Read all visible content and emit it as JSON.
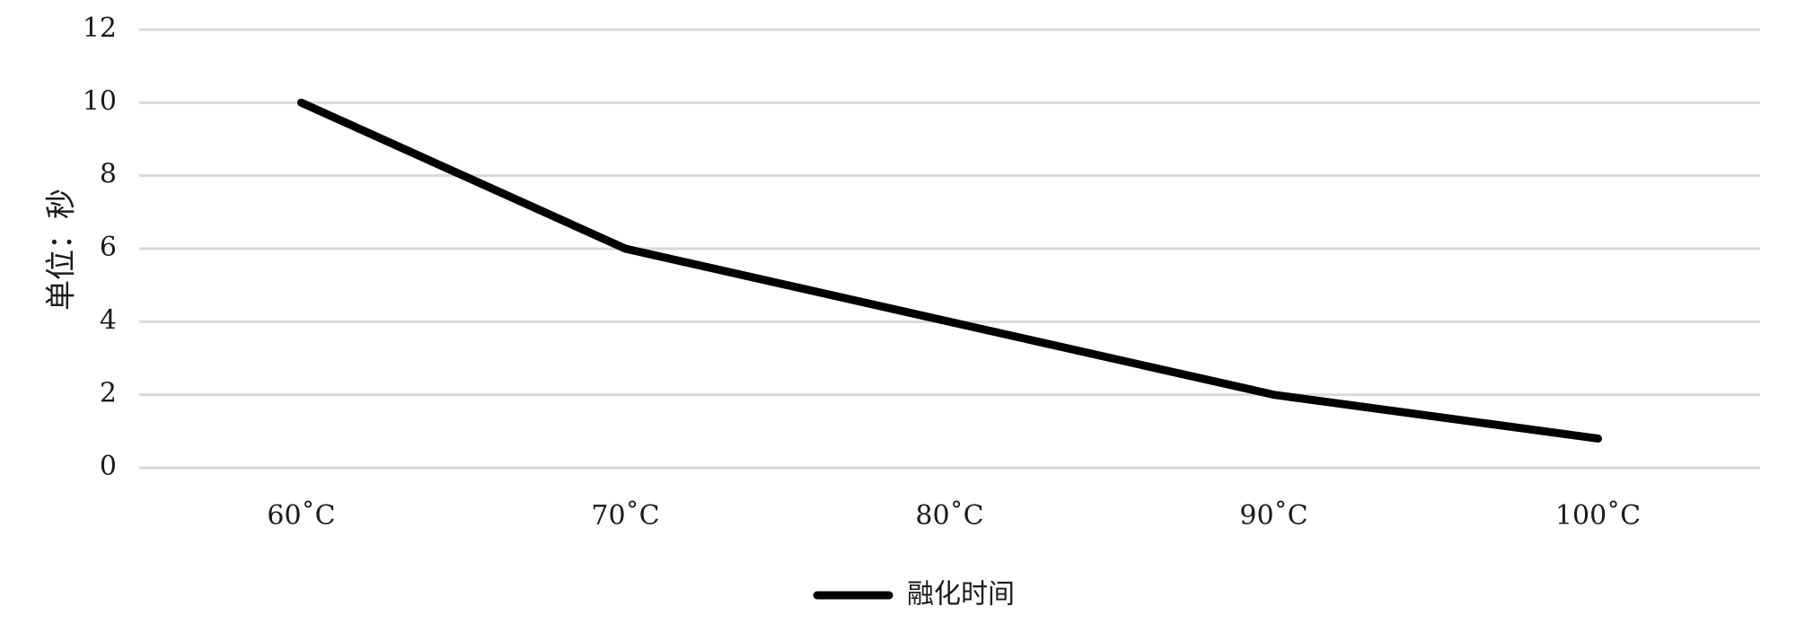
{
  "chart_data": {
    "type": "line",
    "title": "",
    "xlabel": "",
    "ylabel": "单位：秒",
    "categories": [
      "60˚C",
      "70˚C",
      "80˚C",
      "90˚C",
      "100˚C"
    ],
    "series": [
      {
        "name": "融化时间",
        "values": [
          10,
          6,
          4,
          2,
          0.8
        ],
        "color": "#000000"
      }
    ],
    "ylim": [
      0,
      12
    ],
    "yticks": [
      0,
      2,
      4,
      6,
      8,
      10,
      12
    ],
    "grid": true,
    "legend": "bottom-center"
  }
}
